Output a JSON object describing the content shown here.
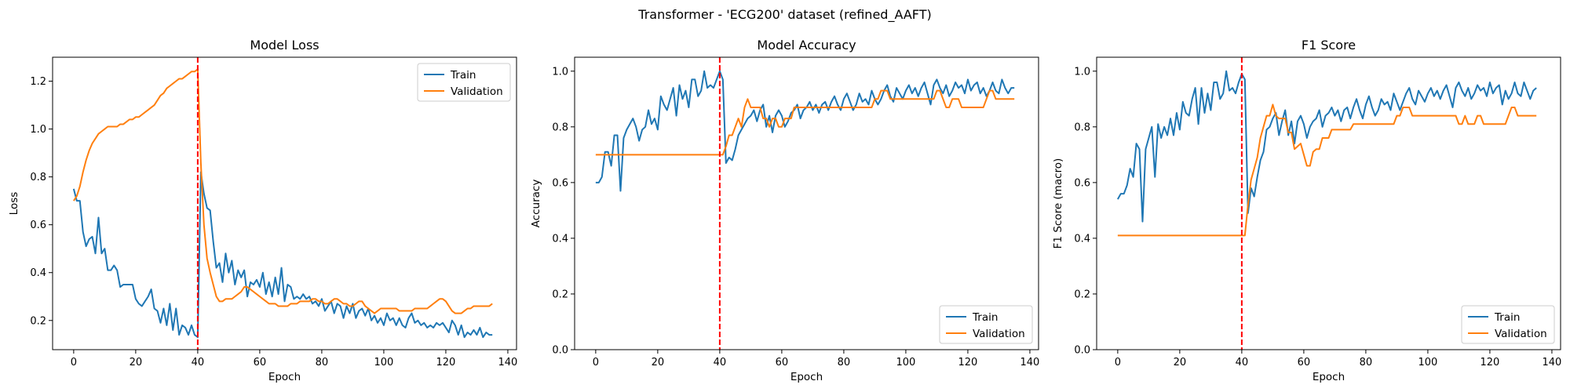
{
  "figure": {
    "suptitle": "Transformer - 'ECG200' dataset (refined_AAFT)"
  },
  "colors": {
    "train": "#1f77b4",
    "validation": "#ff7f0e",
    "marker_line": "#ff0000"
  },
  "chart_data": [
    {
      "type": "line",
      "title": "Model Loss",
      "xlabel": "Epoch",
      "ylabel": "Loss",
      "xlim": [
        -6.8,
        142.8
      ],
      "ylim": [
        0.078,
        1.3
      ],
      "xticks": [
        0,
        20,
        40,
        60,
        80,
        100,
        120,
        140
      ],
      "yticks": [
        0.2,
        0.4,
        0.6,
        0.8,
        1.0,
        1.2
      ],
      "ytick_decimals": 1,
      "legend": "upper right",
      "grid": false,
      "vline_x": 40,
      "series": [
        {
          "name": "Train",
          "x_start": 0,
          "values": [
            0.75,
            0.7,
            0.7,
            0.57,
            0.51,
            0.54,
            0.55,
            0.48,
            0.63,
            0.48,
            0.5,
            0.41,
            0.41,
            0.43,
            0.41,
            0.34,
            0.35,
            0.35,
            0.35,
            0.35,
            0.29,
            0.27,
            0.26,
            0.28,
            0.3,
            0.33,
            0.25,
            0.24,
            0.19,
            0.25,
            0.18,
            0.27,
            0.16,
            0.25,
            0.14,
            0.18,
            0.17,
            0.14,
            0.18,
            0.14,
            0.13,
            0.82,
            0.73,
            0.67,
            0.66,
            0.53,
            0.42,
            0.44,
            0.36,
            0.48,
            0.4,
            0.45,
            0.35,
            0.41,
            0.38,
            0.41,
            0.3,
            0.36,
            0.35,
            0.37,
            0.34,
            0.4,
            0.31,
            0.36,
            0.3,
            0.38,
            0.31,
            0.42,
            0.28,
            0.35,
            0.34,
            0.29,
            0.3,
            0.29,
            0.31,
            0.29,
            0.3,
            0.27,
            0.28,
            0.26,
            0.29,
            0.24,
            0.26,
            0.28,
            0.23,
            0.27,
            0.26,
            0.21,
            0.26,
            0.23,
            0.27,
            0.21,
            0.24,
            0.25,
            0.22,
            0.25,
            0.2,
            0.22,
            0.19,
            0.21,
            0.18,
            0.23,
            0.2,
            0.21,
            0.18,
            0.21,
            0.18,
            0.17,
            0.21,
            0.23,
            0.19,
            0.2,
            0.18,
            0.19,
            0.17,
            0.18,
            0.17,
            0.19,
            0.18,
            0.19,
            0.17,
            0.15,
            0.2,
            0.18,
            0.14,
            0.18,
            0.13,
            0.15,
            0.14,
            0.16,
            0.14,
            0.17,
            0.13,
            0.15,
            0.14,
            0.14
          ]
        },
        {
          "name": "Validation",
          "x_start": 0,
          "values": [
            0.7,
            0.72,
            0.76,
            0.82,
            0.87,
            0.91,
            0.94,
            0.96,
            0.98,
            0.99,
            1.0,
            1.01,
            1.01,
            1.01,
            1.01,
            1.02,
            1.02,
            1.03,
            1.04,
            1.04,
            1.05,
            1.05,
            1.06,
            1.07,
            1.08,
            1.09,
            1.1,
            1.12,
            1.14,
            1.15,
            1.17,
            1.18,
            1.19,
            1.2,
            1.21,
            1.21,
            1.22,
            1.23,
            1.24,
            1.24,
            1.25,
            0.86,
            0.6,
            0.46,
            0.4,
            0.35,
            0.3,
            0.28,
            0.28,
            0.29,
            0.29,
            0.29,
            0.3,
            0.31,
            0.32,
            0.34,
            0.34,
            0.33,
            0.32,
            0.31,
            0.3,
            0.29,
            0.28,
            0.27,
            0.27,
            0.27,
            0.26,
            0.26,
            0.26,
            0.26,
            0.27,
            0.27,
            0.27,
            0.28,
            0.28,
            0.28,
            0.28,
            0.29,
            0.29,
            0.28,
            0.28,
            0.27,
            0.27,
            0.28,
            0.29,
            0.29,
            0.28,
            0.27,
            0.27,
            0.26,
            0.26,
            0.27,
            0.28,
            0.28,
            0.26,
            0.25,
            0.24,
            0.23,
            0.24,
            0.25,
            0.25,
            0.25,
            0.25,
            0.25,
            0.25,
            0.24,
            0.24,
            0.24,
            0.24,
            0.24,
            0.25,
            0.25,
            0.25,
            0.25,
            0.25,
            0.26,
            0.27,
            0.28,
            0.29,
            0.29,
            0.28,
            0.26,
            0.24,
            0.23,
            0.23,
            0.23,
            0.24,
            0.25,
            0.25,
            0.26,
            0.26,
            0.26,
            0.26,
            0.26,
            0.26,
            0.27
          ]
        }
      ]
    },
    {
      "type": "line",
      "title": "Model Accuracy",
      "xlabel": "Epoch",
      "ylabel": "Accuracy",
      "xlim": [
        -6.8,
        142.8
      ],
      "ylim": [
        0.0,
        1.05
      ],
      "xticks": [
        0,
        20,
        40,
        60,
        80,
        100,
        120,
        140
      ],
      "yticks": [
        0.0,
        0.2,
        0.4,
        0.6,
        0.8,
        1.0
      ],
      "ytick_decimals": 1,
      "legend": "lower right",
      "grid": false,
      "vline_x": 40,
      "series": [
        {
          "name": "Train",
          "x_start": 0,
          "values": [
            0.6,
            0.6,
            0.62,
            0.71,
            0.71,
            0.66,
            0.77,
            0.77,
            0.57,
            0.76,
            0.79,
            0.81,
            0.83,
            0.8,
            0.75,
            0.79,
            0.8,
            0.86,
            0.81,
            0.83,
            0.79,
            0.91,
            0.88,
            0.86,
            0.9,
            0.94,
            0.84,
            0.95,
            0.9,
            0.93,
            0.87,
            0.97,
            0.97,
            0.91,
            0.93,
            1.0,
            0.94,
            0.95,
            0.94,
            0.97,
            1.0,
            0.97,
            0.67,
            0.69,
            0.68,
            0.72,
            0.77,
            0.79,
            0.81,
            0.83,
            0.84,
            0.86,
            0.82,
            0.86,
            0.88,
            0.8,
            0.84,
            0.78,
            0.84,
            0.86,
            0.84,
            0.8,
            0.82,
            0.85,
            0.86,
            0.88,
            0.83,
            0.86,
            0.87,
            0.89,
            0.86,
            0.88,
            0.85,
            0.88,
            0.89,
            0.86,
            0.89,
            0.91,
            0.88,
            0.86,
            0.9,
            0.92,
            0.89,
            0.86,
            0.88,
            0.92,
            0.89,
            0.9,
            0.88,
            0.93,
            0.9,
            0.88,
            0.9,
            0.93,
            0.95,
            0.91,
            0.89,
            0.94,
            0.92,
            0.9,
            0.93,
            0.95,
            0.92,
            0.94,
            0.91,
            0.94,
            0.96,
            0.92,
            0.88,
            0.95,
            0.97,
            0.94,
            0.92,
            0.95,
            0.91,
            0.93,
            0.96,
            0.94,
            0.95,
            0.92,
            0.97,
            0.93,
            0.95,
            0.96,
            0.92,
            0.94,
            0.91,
            0.93,
            0.96,
            0.93,
            0.92,
            0.97,
            0.94,
            0.92,
            0.94,
            0.94
          ]
        },
        {
          "name": "Validation",
          "x_start": 0,
          "values": [
            0.7,
            0.7,
            0.7,
            0.7,
            0.7,
            0.7,
            0.7,
            0.7,
            0.7,
            0.7,
            0.7,
            0.7,
            0.7,
            0.7,
            0.7,
            0.7,
            0.7,
            0.7,
            0.7,
            0.7,
            0.7,
            0.7,
            0.7,
            0.7,
            0.7,
            0.7,
            0.7,
            0.7,
            0.7,
            0.7,
            0.7,
            0.7,
            0.7,
            0.7,
            0.7,
            0.7,
            0.7,
            0.7,
            0.7,
            0.7,
            0.7,
            0.7,
            0.73,
            0.77,
            0.77,
            0.8,
            0.83,
            0.8,
            0.87,
            0.9,
            0.87,
            0.87,
            0.87,
            0.87,
            0.83,
            0.83,
            0.8,
            0.83,
            0.83,
            0.8,
            0.8,
            0.83,
            0.83,
            0.83,
            0.87,
            0.87,
            0.87,
            0.87,
            0.87,
            0.87,
            0.87,
            0.87,
            0.87,
            0.87,
            0.87,
            0.87,
            0.87,
            0.87,
            0.87,
            0.87,
            0.87,
            0.87,
            0.87,
            0.87,
            0.87,
            0.87,
            0.87,
            0.87,
            0.87,
            0.87,
            0.9,
            0.9,
            0.93,
            0.93,
            0.93,
            0.9,
            0.9,
            0.9,
            0.9,
            0.9,
            0.9,
            0.9,
            0.9,
            0.9,
            0.9,
            0.9,
            0.9,
            0.9,
            0.9,
            0.9,
            0.93,
            0.93,
            0.9,
            0.87,
            0.87,
            0.9,
            0.9,
            0.9,
            0.87,
            0.87,
            0.87,
            0.87,
            0.87,
            0.87,
            0.87,
            0.87,
            0.9,
            0.93,
            0.93,
            0.9,
            0.9,
            0.9,
            0.9,
            0.9,
            0.9,
            0.9
          ]
        }
      ]
    },
    {
      "type": "line",
      "title": "F1 Score",
      "xlabel": "Epoch",
      "ylabel": "F1 Score (macro)",
      "xlim": [
        -6.8,
        142.8
      ],
      "ylim": [
        0.0,
        1.05
      ],
      "xticks": [
        0,
        20,
        40,
        60,
        80,
        100,
        120,
        140
      ],
      "yticks": [
        0.0,
        0.2,
        0.4,
        0.6,
        0.8,
        1.0
      ],
      "ytick_decimals": 1,
      "legend": "lower right",
      "grid": false,
      "vline_x": 40,
      "series": [
        {
          "name": "Train",
          "x_start": 0,
          "values": [
            0.54,
            0.56,
            0.56,
            0.59,
            0.65,
            0.62,
            0.74,
            0.72,
            0.46,
            0.72,
            0.76,
            0.8,
            0.62,
            0.81,
            0.76,
            0.8,
            0.77,
            0.83,
            0.77,
            0.85,
            0.79,
            0.89,
            0.85,
            0.84,
            0.9,
            0.94,
            0.81,
            0.94,
            0.85,
            0.92,
            0.86,
            0.96,
            0.96,
            0.9,
            0.92,
            1.0,
            0.93,
            0.94,
            0.92,
            0.96,
            0.99,
            0.97,
            0.49,
            0.58,
            0.55,
            0.62,
            0.68,
            0.71,
            0.79,
            0.8,
            0.83,
            0.85,
            0.77,
            0.82,
            0.86,
            0.77,
            0.82,
            0.74,
            0.82,
            0.84,
            0.81,
            0.76,
            0.8,
            0.82,
            0.83,
            0.86,
            0.8,
            0.84,
            0.85,
            0.87,
            0.84,
            0.86,
            0.82,
            0.86,
            0.87,
            0.83,
            0.87,
            0.9,
            0.86,
            0.83,
            0.88,
            0.91,
            0.87,
            0.84,
            0.86,
            0.9,
            0.88,
            0.89,
            0.86,
            0.92,
            0.89,
            0.86,
            0.89,
            0.92,
            0.94,
            0.9,
            0.88,
            0.93,
            0.91,
            0.89,
            0.92,
            0.94,
            0.91,
            0.93,
            0.9,
            0.93,
            0.95,
            0.91,
            0.87,
            0.94,
            0.96,
            0.93,
            0.91,
            0.94,
            0.9,
            0.92,
            0.95,
            0.93,
            0.94,
            0.91,
            0.96,
            0.92,
            0.94,
            0.95,
            0.88,
            0.93,
            0.9,
            0.92,
            0.96,
            0.92,
            0.91,
            0.96,
            0.93,
            0.9,
            0.93,
            0.94
          ]
        },
        {
          "name": "Validation",
          "x_start": 0,
          "values": [
            0.41,
            0.41,
            0.41,
            0.41,
            0.41,
            0.41,
            0.41,
            0.41,
            0.41,
            0.41,
            0.41,
            0.41,
            0.41,
            0.41,
            0.41,
            0.41,
            0.41,
            0.41,
            0.41,
            0.41,
            0.41,
            0.41,
            0.41,
            0.41,
            0.41,
            0.41,
            0.41,
            0.41,
            0.41,
            0.41,
            0.41,
            0.41,
            0.41,
            0.41,
            0.41,
            0.41,
            0.41,
            0.41,
            0.41,
            0.41,
            0.41,
            0.41,
            0.52,
            0.61,
            0.65,
            0.69,
            0.76,
            0.8,
            0.84,
            0.84,
            0.88,
            0.84,
            0.83,
            0.83,
            0.83,
            0.78,
            0.78,
            0.72,
            0.73,
            0.74,
            0.7,
            0.66,
            0.66,
            0.71,
            0.72,
            0.72,
            0.76,
            0.76,
            0.76,
            0.79,
            0.79,
            0.79,
            0.79,
            0.79,
            0.79,
            0.79,
            0.81,
            0.81,
            0.81,
            0.81,
            0.81,
            0.81,
            0.81,
            0.81,
            0.81,
            0.81,
            0.81,
            0.81,
            0.81,
            0.81,
            0.84,
            0.84,
            0.87,
            0.87,
            0.87,
            0.84,
            0.84,
            0.84,
            0.84,
            0.84,
            0.84,
            0.84,
            0.84,
            0.84,
            0.84,
            0.84,
            0.84,
            0.84,
            0.84,
            0.84,
            0.81,
            0.81,
            0.84,
            0.81,
            0.81,
            0.81,
            0.84,
            0.84,
            0.81,
            0.81,
            0.81,
            0.81,
            0.81,
            0.81,
            0.81,
            0.81,
            0.84,
            0.87,
            0.87,
            0.84,
            0.84,
            0.84,
            0.84,
            0.84,
            0.84,
            0.84
          ]
        }
      ]
    }
  ]
}
